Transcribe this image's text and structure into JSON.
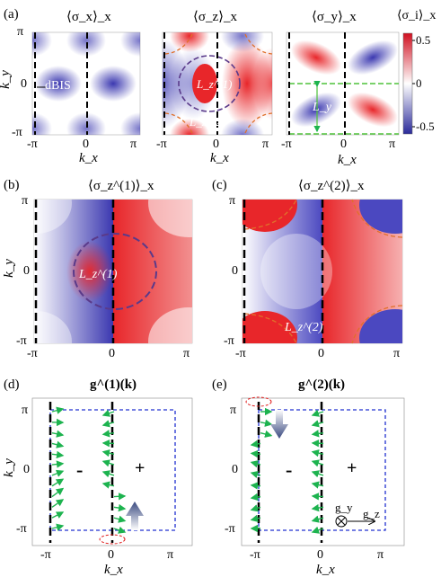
{
  "panels": {
    "a": {
      "label": "(a)",
      "titles": [
        "⟨σ_x⟩_x",
        "⟨σ_z⟩_x",
        "⟨σ_y⟩_x",
        "⟨σ_i⟩_x"
      ],
      "annotations": [
        "dBIS",
        "L_z^(1)",
        "L_z^(2)",
        "L_y"
      ]
    },
    "b": {
      "label": "(b)",
      "title": "⟨σ_z^(1)⟩_x",
      "annotation": "L_z^(1)"
    },
    "c": {
      "label": "(c)",
      "title": "⟨σ_z^(2)⟩_x",
      "annotation": "L_z^(2)"
    },
    "d": {
      "label": "(d)",
      "title": "g^(1)(k)",
      "signs": [
        "-",
        "+"
      ]
    },
    "e": {
      "label": "(e)",
      "title": "g^(2)(k)",
      "signs": [
        "-",
        "+"
      ],
      "vector_labels": [
        "g_y",
        "g_z"
      ]
    }
  },
  "axes": {
    "x_label": "k_x",
    "y_label": "k_y",
    "x_ticks": [
      "-π",
      "0",
      "π"
    ],
    "y_ticks": [
      "π",
      "0",
      "-π"
    ]
  },
  "colorbar": {
    "ticks": [
      "0.5",
      "0",
      "-0.5"
    ],
    "range": [
      -0.5,
      0.5
    ],
    "colors": {
      "positive": "#e8262a",
      "zero": "#ffffff",
      "negative": "#3b38b0"
    }
  },
  "colors": {
    "arrow": "#1db34f",
    "boundary_blue": "#2030d0",
    "dash_purple": "#5a3a8a",
    "dash_orange": "#e0702a",
    "dash_green": "#4ec23a",
    "ellipse_red": "#e02020"
  }
}
